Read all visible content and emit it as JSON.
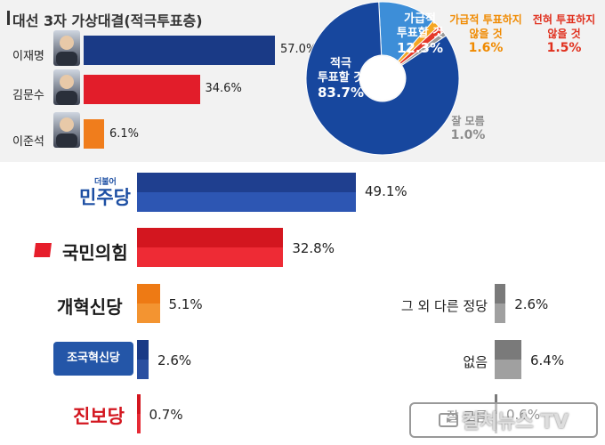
{
  "header": {
    "title": "대선 3자 가상대결(적극투표층)"
  },
  "candidates": [
    {
      "name": "이재명",
      "value": 57.0,
      "label": "57.0%",
      "color": "#1a3a86"
    },
    {
      "name": "김문수",
      "value": 34.6,
      "label": "34.6%",
      "color": "#e21d2a"
    },
    {
      "name": "이준석",
      "value": 6.1,
      "label": "6.1%",
      "color": "#f07d1c"
    }
  ],
  "pie": {
    "slices": [
      {
        "name": "적극 투표할 것",
        "value": 83.7,
        "label_line1": "적극",
        "label_line2": "투표할 것",
        "label_value": "83.7%",
        "color": "#17479e",
        "text_color": "#ffffff"
      },
      {
        "name": "가급적 투표할 것",
        "value": 12.3,
        "label_line1": "가급적",
        "label_line2": "투표할 것",
        "label_value": "12.3%",
        "color": "#3d8ed8",
        "text_color": "#1f7fd1"
      },
      {
        "name": "가급적 투표하지 않을 것",
        "value": 1.6,
        "label_line1": "가급적 투표하지",
        "label_line2": "않을 것",
        "label_value": "1.6%",
        "color": "#f5a623",
        "text_color": "#f08a00"
      },
      {
        "name": "전혀 투표하지 않을 것",
        "value": 1.5,
        "label_line1": "전혀 투표하지",
        "label_line2": "않을 것",
        "label_value": "1.5%",
        "color": "#e53a2a",
        "text_color": "#e0301e"
      },
      {
        "name": "잘 모름",
        "value": 1.0,
        "label_line1": "잘 모름",
        "label_line2": "",
        "label_value": "1.0%",
        "color": "#9a9a9a",
        "text_color": "#8c8c8c"
      }
    ]
  },
  "chart_data": [
    {
      "type": "bar",
      "title": "대선 3자 가상대결(적극투표층)",
      "categories": [
        "이재명",
        "김문수",
        "이준석"
      ],
      "values": [
        57.0,
        34.6,
        6.1
      ]
    },
    {
      "type": "pie",
      "categories": [
        "적극 투표할 것",
        "가급적 투표할 것",
        "가급적 투표하지 않을 것",
        "전혀 투표하지 않을 것",
        "잘 모름"
      ],
      "values": [
        83.7,
        12.3,
        1.6,
        1.5,
        1.0
      ]
    },
    {
      "type": "bar",
      "categories": [
        "민주당",
        "국민의힘",
        "개혁신당",
        "조국혁신당",
        "진보당",
        "그 외 다른 정당",
        "없음",
        "잘 모름"
      ],
      "values": [
        49.1,
        32.8,
        5.1,
        2.6,
        0.7,
        2.6,
        6.4,
        0.6
      ]
    }
  ],
  "parties": [
    {
      "name": "민주당",
      "sub": "더불어",
      "value": 49.1,
      "label": "49.1%",
      "color_top": "#1f3f8f",
      "color_bottom": "#2d56b3",
      "logo_color": "#1d4fa3"
    },
    {
      "name": "국민의힘",
      "value": 32.8,
      "label": "32.8%",
      "color_top": "#d3161f",
      "color_bottom": "#ee2b35",
      "logo_color": "#1a1a1a",
      "mark_color": "#e61e2b"
    },
    {
      "name": "개혁신당",
      "value": 5.1,
      "label": "5.1%",
      "color_top": "#ee7a14",
      "color_bottom": "#f39431",
      "logo_color": "#1a1a1a",
      "accent_color": "#f07d1c"
    },
    {
      "name": "조국혁신당",
      "value": 2.6,
      "label": "2.6%",
      "color_top": "#1a3a86",
      "color_bottom": "#2a4fa0",
      "logo_color": "#ffffff",
      "logo_bg": "#2456a8"
    },
    {
      "name": "진보당",
      "value": 0.7,
      "label": "0.7%",
      "color_top": "#d3161f",
      "color_bottom": "#e62a35",
      "logo_color": "#d3161f"
    }
  ],
  "others": [
    {
      "name": "그 외 다른 정당",
      "value": 2.6,
      "label": "2.6%",
      "color_top": "#7a7a7a",
      "color_bottom": "#a0a0a0"
    },
    {
      "name": "없음",
      "value": 6.4,
      "label": "6.4%",
      "color_top": "#7a7a7a",
      "color_bottom": "#a0a0a0"
    },
    {
      "name": "잘 모름",
      "value": 0.6,
      "label": "0.6%",
      "color_top": "#7a7a7a",
      "color_bottom": "#a0a0a0"
    }
  ],
  "watermark": {
    "text": "컬처뉴스 TV"
  }
}
